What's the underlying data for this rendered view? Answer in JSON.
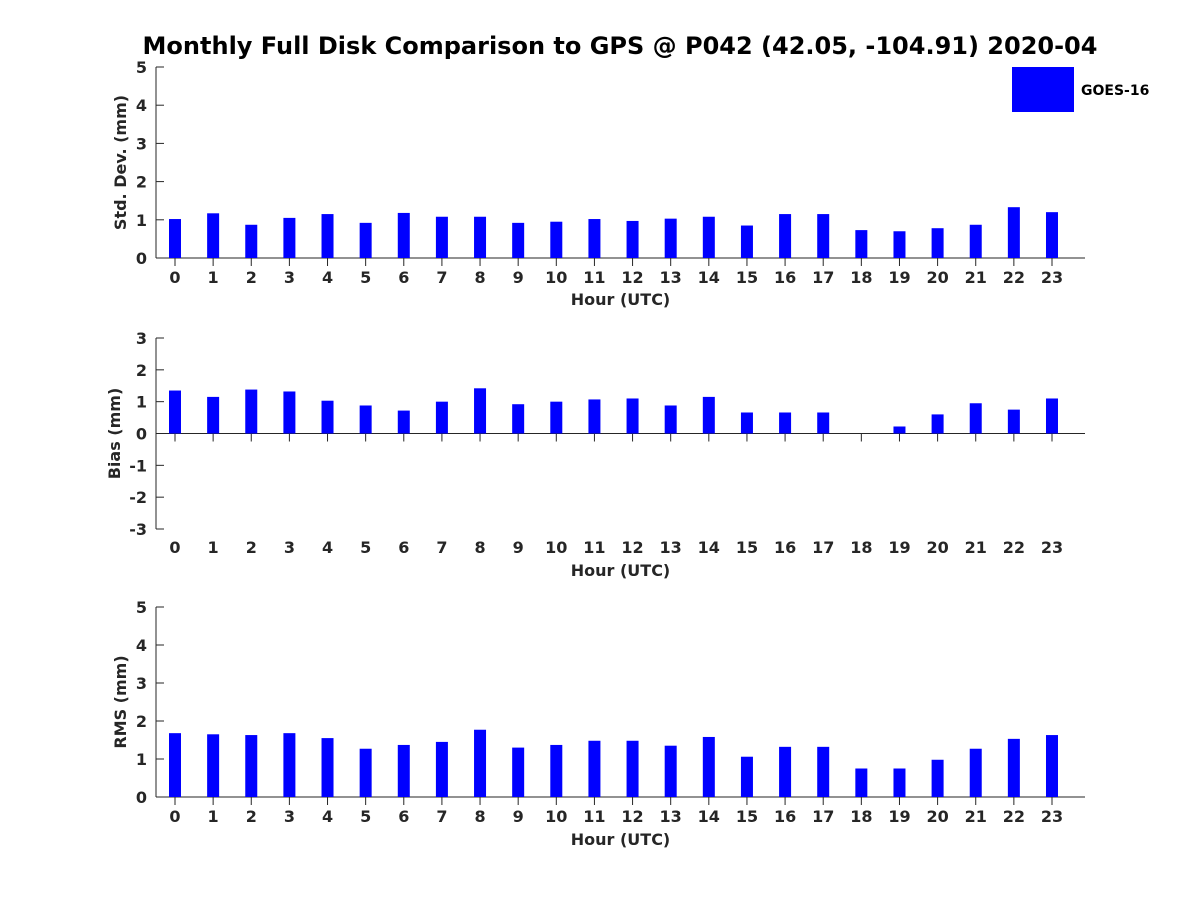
{
  "figure": {
    "title": "Monthly Full Disk Comparison to GPS @ P042 (42.05, -104.91) 2020-04",
    "legend": {
      "label": "GOES-16",
      "color": "#0000ff",
      "placement": "top-right"
    }
  },
  "chart_data": [
    {
      "type": "bar",
      "xlabel": "Hour (UTC)",
      "ylabel": "Std. Dev. (mm)",
      "ylim": [
        0,
        5
      ],
      "yticks": [
        0,
        1,
        2,
        3,
        4,
        5
      ],
      "categories": [
        "0",
        "1",
        "2",
        "3",
        "4",
        "5",
        "6",
        "7",
        "8",
        "9",
        "10",
        "11",
        "12",
        "13",
        "14",
        "15",
        "16",
        "17",
        "18",
        "19",
        "20",
        "21",
        "22",
        "23"
      ],
      "series": [
        {
          "name": "GOES-16",
          "color": "#0000ff",
          "values": [
            1.02,
            1.17,
            0.87,
            1.05,
            1.15,
            0.92,
            1.18,
            1.08,
            1.08,
            0.92,
            0.95,
            1.02,
            0.97,
            1.03,
            1.08,
            0.85,
            1.15,
            1.15,
            0.73,
            0.7,
            0.78,
            0.87,
            1.33,
            1.2
          ]
        }
      ]
    },
    {
      "type": "bar",
      "xlabel": "Hour (UTC)",
      "ylabel": "Bias (mm)",
      "ylim": [
        -3,
        3
      ],
      "yticks": [
        -3,
        -2,
        -1,
        0,
        1,
        2,
        3
      ],
      "categories": [
        "0",
        "1",
        "2",
        "3",
        "4",
        "5",
        "6",
        "7",
        "8",
        "9",
        "10",
        "11",
        "12",
        "13",
        "14",
        "15",
        "16",
        "17",
        "18",
        "19",
        "20",
        "21",
        "22",
        "23"
      ],
      "series": [
        {
          "name": "GOES-16",
          "color": "#0000ff",
          "values": [
            1.35,
            1.15,
            1.38,
            1.32,
            1.03,
            0.88,
            0.72,
            1.0,
            1.42,
            0.92,
            1.0,
            1.07,
            1.1,
            0.88,
            1.15,
            0.66,
            0.66,
            0.66,
            0.0,
            0.22,
            0.6,
            0.95,
            0.75,
            1.1
          ]
        }
      ]
    },
    {
      "type": "bar",
      "xlabel": "Hour (UTC)",
      "ylabel": "RMS (mm)",
      "ylim": [
        0,
        5
      ],
      "yticks": [
        0,
        1,
        2,
        3,
        4,
        5
      ],
      "categories": [
        "0",
        "1",
        "2",
        "3",
        "4",
        "5",
        "6",
        "7",
        "8",
        "9",
        "10",
        "11",
        "12",
        "13",
        "14",
        "15",
        "16",
        "17",
        "18",
        "19",
        "20",
        "21",
        "22",
        "23"
      ],
      "series": [
        {
          "name": "GOES-16",
          "color": "#0000ff",
          "values": [
            1.68,
            1.65,
            1.63,
            1.68,
            1.55,
            1.27,
            1.37,
            1.45,
            1.77,
            1.3,
            1.37,
            1.48,
            1.48,
            1.35,
            1.58,
            1.06,
            1.32,
            1.32,
            0.75,
            0.75,
            0.98,
            1.27,
            1.53,
            1.63
          ]
        }
      ]
    }
  ]
}
